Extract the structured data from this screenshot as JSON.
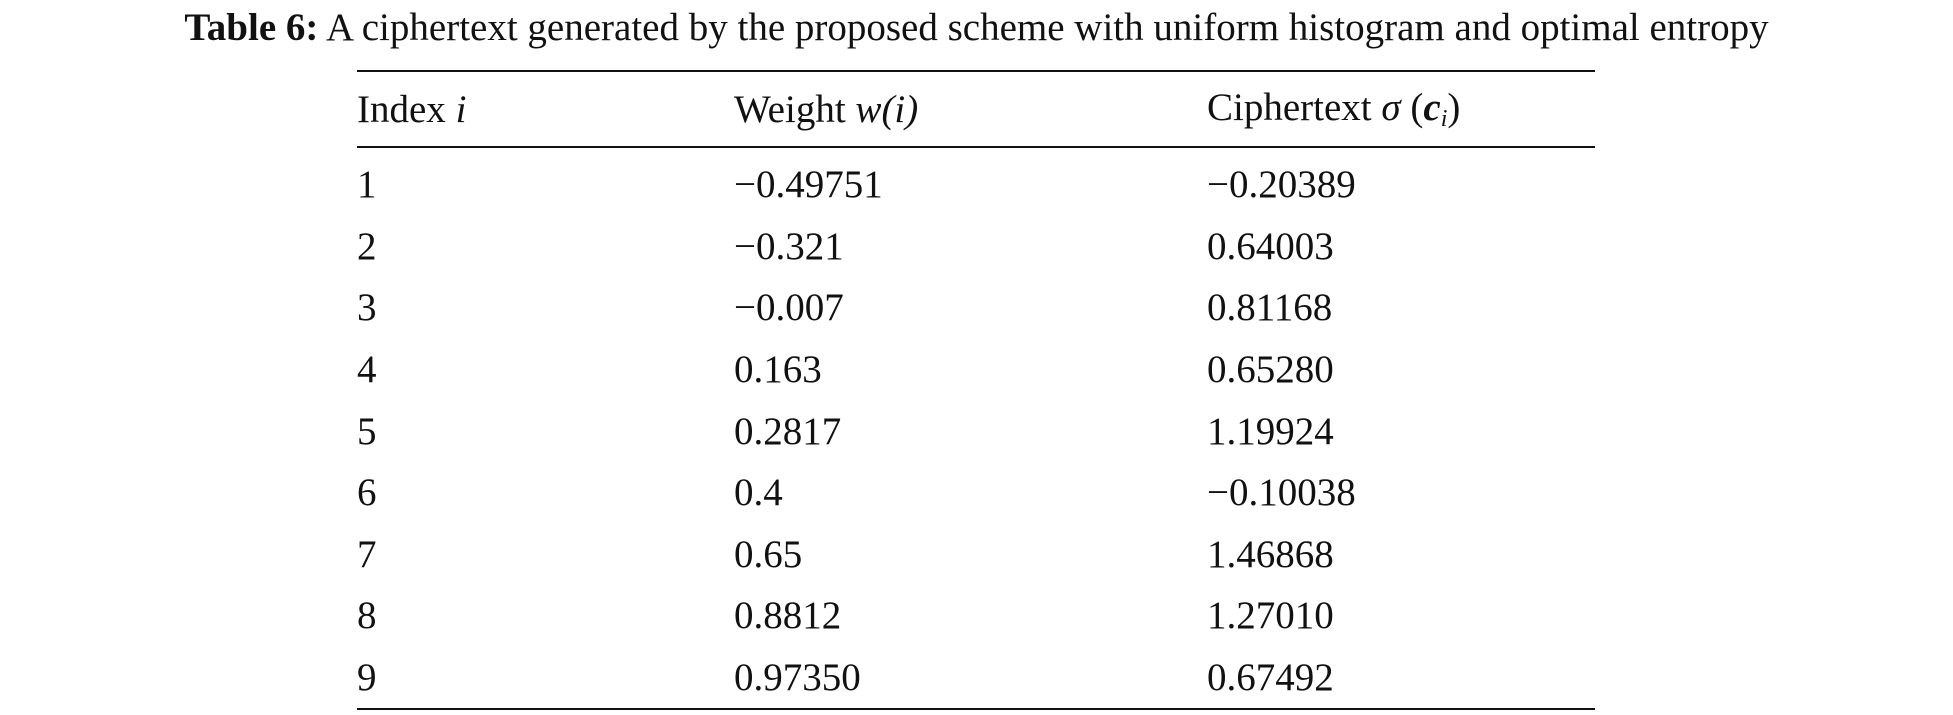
{
  "caption": {
    "label": "Table 6:",
    "text": " A ciphertext generated by the proposed scheme with uniform histogram and optimal entropy"
  },
  "table": {
    "headers": {
      "index": {
        "text": "Index ",
        "var": "i"
      },
      "weight": {
        "text": "Weight ",
        "var": "w",
        "arg": "(i)"
      },
      "cipher": {
        "text": "Ciphertext ",
        "sigma": "σ",
        "var": "c",
        "sub": "i"
      }
    },
    "rows": [
      {
        "index": "1",
        "weight": "−0.49751",
        "cipher": "−0.20389"
      },
      {
        "index": "2",
        "weight": "−0.321",
        "cipher": "0.64003"
      },
      {
        "index": "3",
        "weight": "−0.007",
        "cipher": "0.81168"
      },
      {
        "index": "4",
        "weight": "0.163",
        "cipher": "0.65280"
      },
      {
        "index": "5",
        "weight": "0.2817",
        "cipher": "1.19924"
      },
      {
        "index": "6",
        "weight": "0.4",
        "cipher": "−0.10038"
      },
      {
        "index": "7",
        "weight": "0.65",
        "cipher": "1.46868"
      },
      {
        "index": "8",
        "weight": "0.8812",
        "cipher": "1.27010"
      },
      {
        "index": "9",
        "weight": "0.97350",
        "cipher": "0.67492"
      }
    ]
  }
}
